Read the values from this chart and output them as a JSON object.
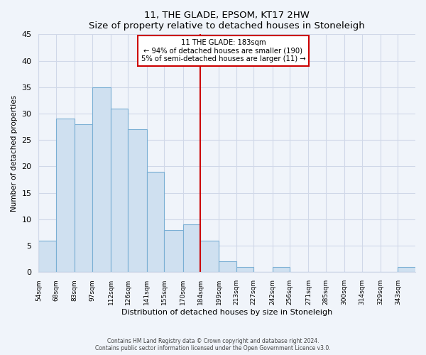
{
  "title": "11, THE GLADE, EPSOM, KT17 2HW",
  "subtitle": "Size of property relative to detached houses in Stoneleigh",
  "xlabel": "Distribution of detached houses by size in Stoneleigh",
  "ylabel": "Number of detached properties",
  "bin_labels": [
    "54sqm",
    "68sqm",
    "83sqm",
    "97sqm",
    "112sqm",
    "126sqm",
    "141sqm",
    "155sqm",
    "170sqm",
    "184sqm",
    "199sqm",
    "213sqm",
    "227sqm",
    "242sqm",
    "256sqm",
    "271sqm",
    "285sqm",
    "300sqm",
    "314sqm",
    "329sqm",
    "343sqm"
  ],
  "bin_edges": [
    54,
    68,
    83,
    97,
    112,
    126,
    141,
    155,
    170,
    184,
    199,
    213,
    227,
    242,
    256,
    271,
    285,
    300,
    314,
    329,
    343,
    357
  ],
  "bar_values": [
    6,
    29,
    28,
    35,
    31,
    27,
    19,
    8,
    9,
    6,
    2,
    1,
    0,
    1,
    0,
    0,
    0,
    0,
    0,
    0,
    1
  ],
  "bar_facecolor": "#cfe0f0",
  "bar_edgecolor": "#7aafd4",
  "bar_linewidth": 0.8,
  "vline_x": 184,
  "vline_color": "#cc0000",
  "vline_linewidth": 1.5,
  "annotation_title": "11 THE GLADE: 183sqm",
  "annotation_line1": "← 94% of detached houses are smaller (190)",
  "annotation_line2": "5% of semi-detached houses are larger (11) →",
  "annotation_box_edgecolor": "#cc0000",
  "annotation_box_facecolor": "#ffffff",
  "ylim": [
    0,
    45
  ],
  "yticks": [
    0,
    5,
    10,
    15,
    20,
    25,
    30,
    35,
    40,
    45
  ],
  "grid_color": "#d0d8e8",
  "background_color": "#f0f4fa",
  "plot_background": "#f0f4fa",
  "footnote1": "Contains HM Land Registry data © Crown copyright and database right 2024.",
  "footnote2": "Contains public sector information licensed under the Open Government Licence v3.0."
}
